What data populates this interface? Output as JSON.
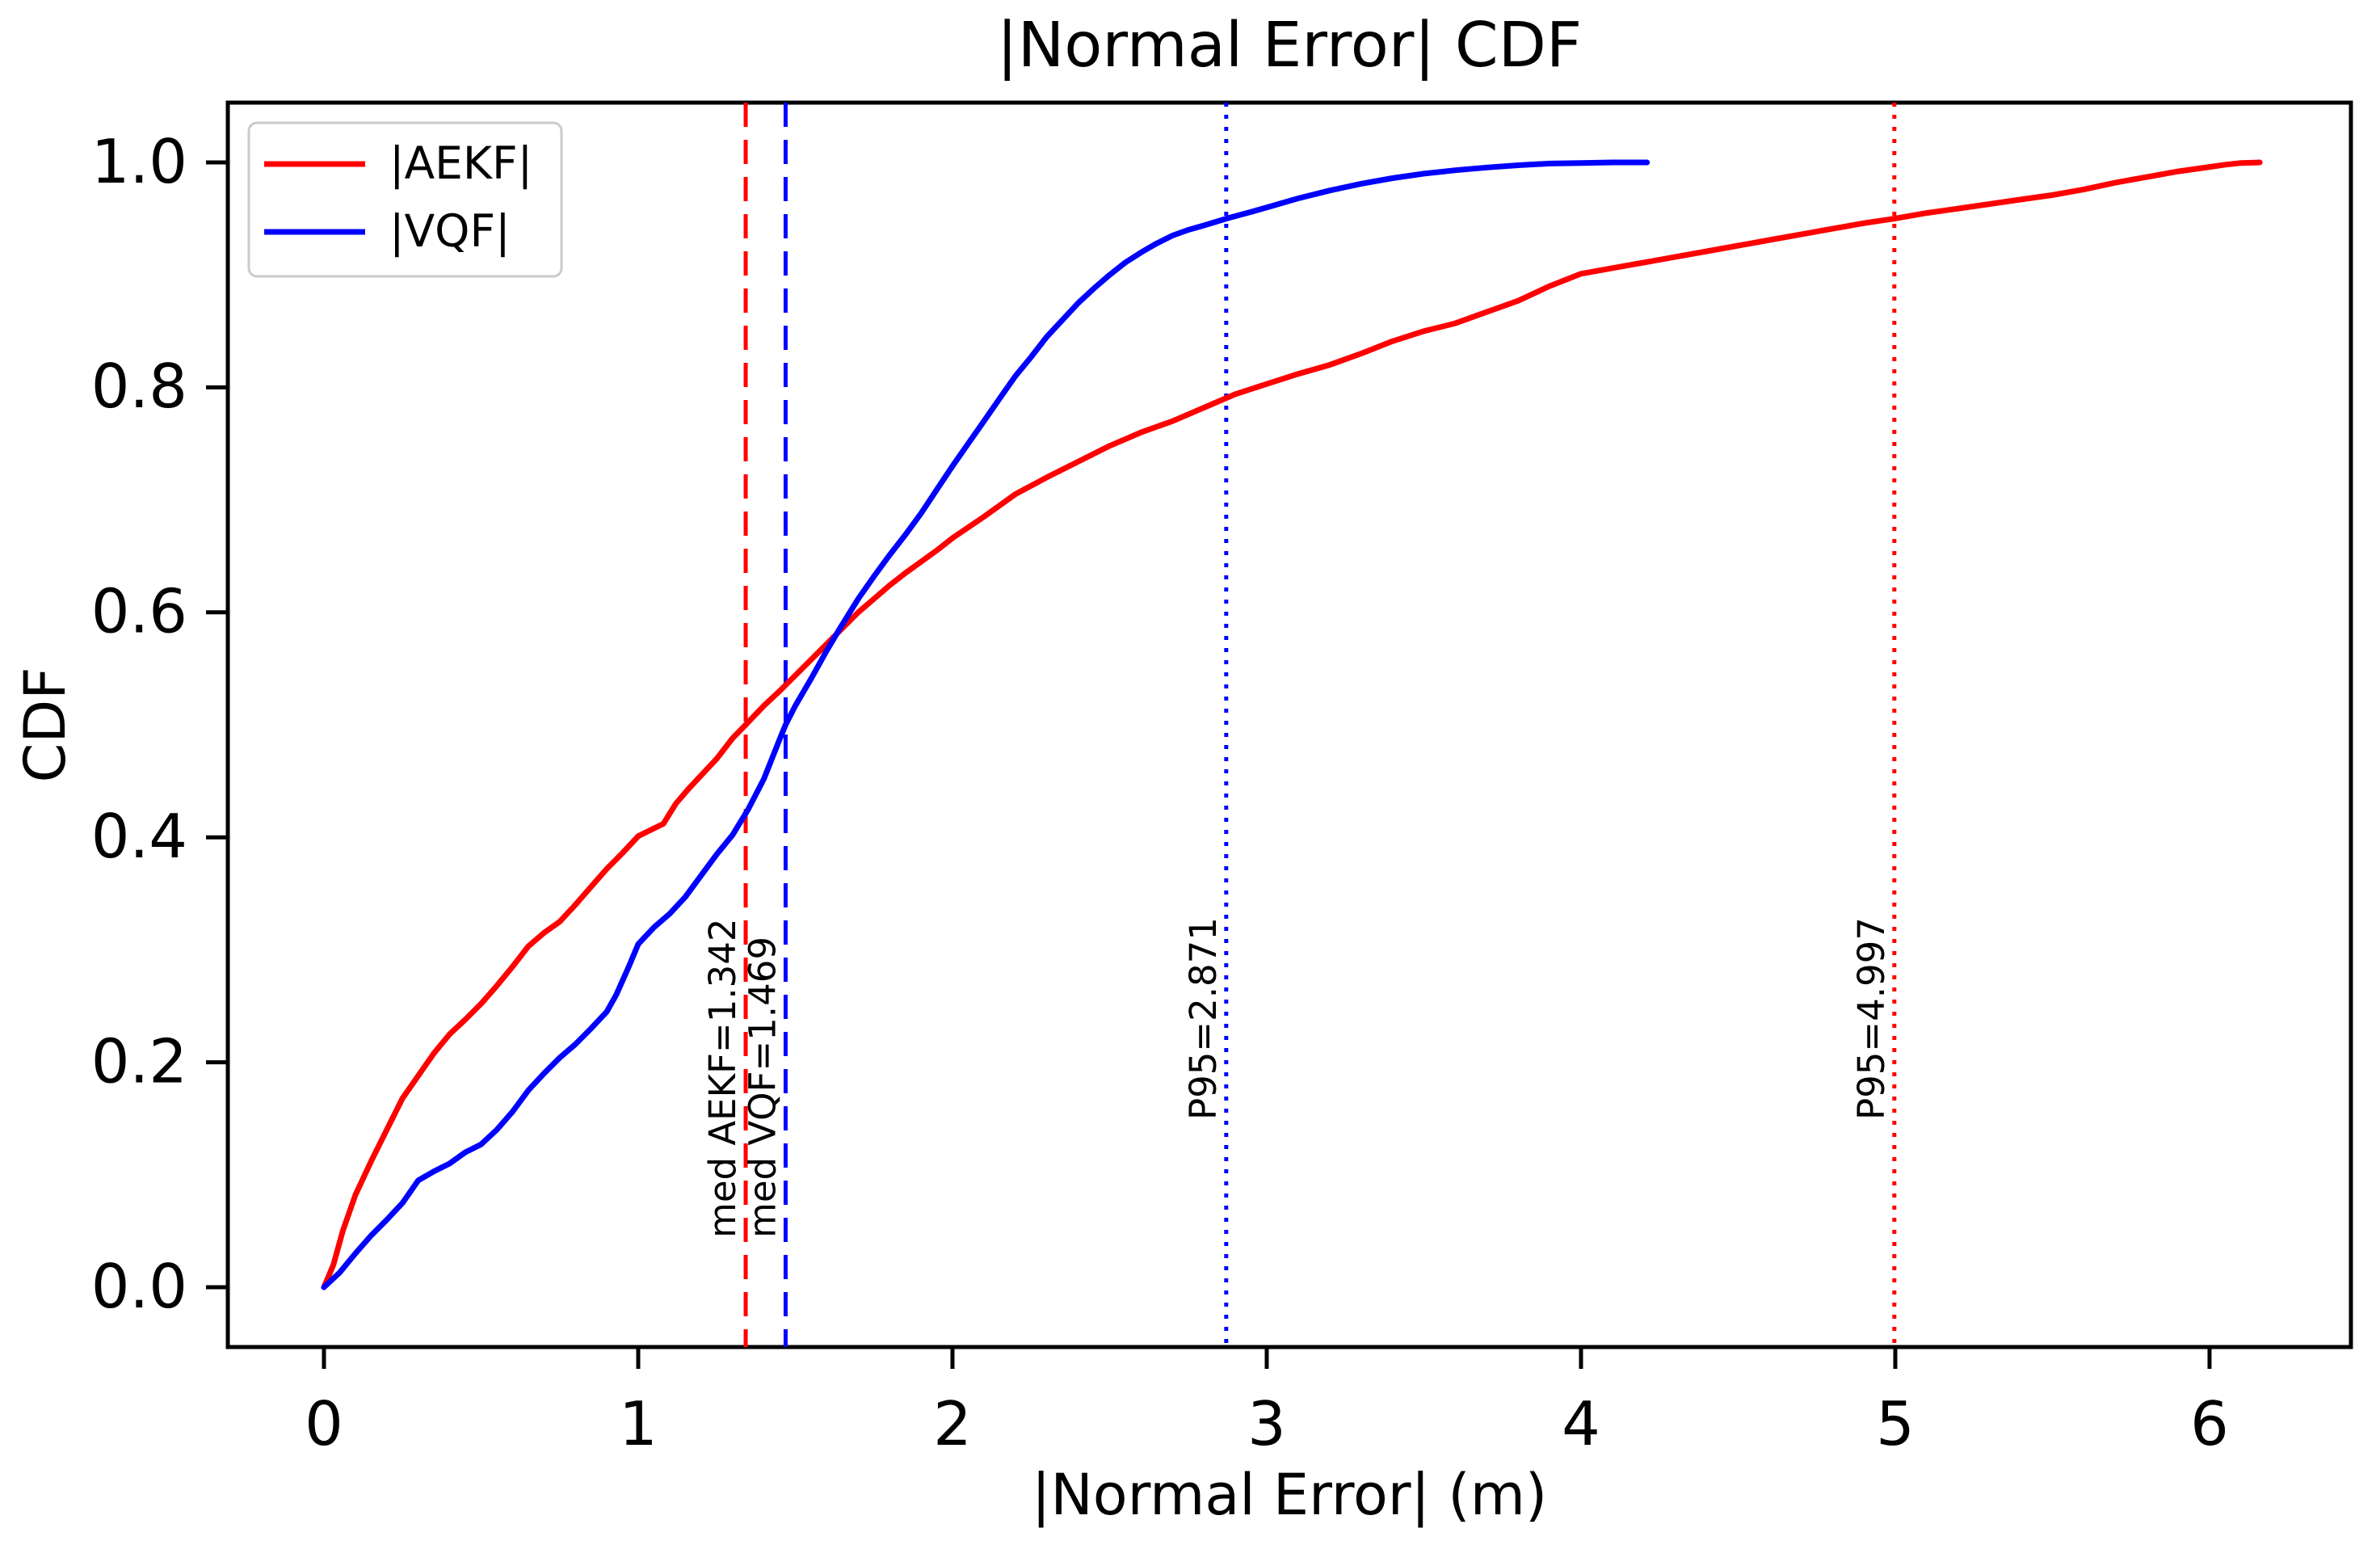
{
  "figure": {
    "background": "#ffffff"
  },
  "chart_data": {
    "type": "line",
    "title": "|Normal Error| CDF",
    "xlabel": "|Normal Error| (m)",
    "ylabel": "CDF",
    "x_ticks": [
      "0",
      "1",
      "2",
      "3",
      "4",
      "5",
      "6"
    ],
    "x_tick_values": [
      0,
      1,
      2,
      3,
      4,
      5,
      6
    ],
    "y_ticks": [
      "0.0",
      "0.2",
      "0.4",
      "0.6",
      "0.8",
      "1.0"
    ],
    "y_tick_values": [
      0.0,
      0.2,
      0.4,
      0.6,
      0.8,
      1.0
    ],
    "xlim": [
      -0.31,
      6.45
    ],
    "ylim": [
      -0.053,
      1.053
    ],
    "grid": false,
    "legend_position": "upper left",
    "series": [
      {
        "name": "|AEKF|",
        "color": "#ff0000",
        "median": 1.342,
        "p95": 4.997,
        "points": [
          [
            0,
            0
          ],
          [
            0.03,
            0.02
          ],
          [
            0.06,
            0.05
          ],
          [
            0.1,
            0.082
          ],
          [
            0.15,
            0.112
          ],
          [
            0.2,
            0.14
          ],
          [
            0.25,
            0.168
          ],
          [
            0.3,
            0.188
          ],
          [
            0.35,
            0.208
          ],
          [
            0.4,
            0.225
          ],
          [
            0.45,
            0.238
          ],
          [
            0.5,
            0.252
          ],
          [
            0.55,
            0.268
          ],
          [
            0.6,
            0.285
          ],
          [
            0.65,
            0.303
          ],
          [
            0.7,
            0.315
          ],
          [
            0.75,
            0.325
          ],
          [
            0.8,
            0.34
          ],
          [
            0.85,
            0.356
          ],
          [
            0.9,
            0.372
          ],
          [
            0.95,
            0.386
          ],
          [
            1.0,
            0.401
          ],
          [
            1.05,
            0.408
          ],
          [
            1.08,
            0.412
          ],
          [
            1.12,
            0.43
          ],
          [
            1.16,
            0.443
          ],
          [
            1.2,
            0.455
          ],
          [
            1.25,
            0.47
          ],
          [
            1.3,
            0.488
          ],
          [
            1.342,
            0.5
          ],
          [
            1.4,
            0.517
          ],
          [
            1.45,
            0.53
          ],
          [
            1.5,
            0.544
          ],
          [
            1.55,
            0.558
          ],
          [
            1.6,
            0.572
          ],
          [
            1.65,
            0.586
          ],
          [
            1.7,
            0.6
          ],
          [
            1.75,
            0.612
          ],
          [
            1.8,
            0.624
          ],
          [
            1.85,
            0.635
          ],
          [
            1.9,
            0.645
          ],
          [
            1.95,
            0.655
          ],
          [
            2.0,
            0.666
          ],
          [
            2.1,
            0.685
          ],
          [
            2.2,
            0.705
          ],
          [
            2.3,
            0.72
          ],
          [
            2.4,
            0.734
          ],
          [
            2.5,
            0.748
          ],
          [
            2.6,
            0.76
          ],
          [
            2.7,
            0.77
          ],
          [
            2.8,
            0.782
          ],
          [
            2.9,
            0.794
          ],
          [
            3.0,
            0.803
          ],
          [
            3.1,
            0.812
          ],
          [
            3.2,
            0.82
          ],
          [
            3.3,
            0.83
          ],
          [
            3.4,
            0.841
          ],
          [
            3.5,
            0.85
          ],
          [
            3.6,
            0.857
          ],
          [
            3.7,
            0.867
          ],
          [
            3.8,
            0.877
          ],
          [
            3.9,
            0.89
          ],
          [
            4.0,
            0.901
          ],
          [
            4.1,
            0.906
          ],
          [
            4.2,
            0.911
          ],
          [
            4.3,
            0.916
          ],
          [
            4.4,
            0.921
          ],
          [
            4.5,
            0.926
          ],
          [
            4.6,
            0.931
          ],
          [
            4.7,
            0.936
          ],
          [
            4.8,
            0.941
          ],
          [
            4.9,
            0.946
          ],
          [
            4.997,
            0.95
          ],
          [
            5.1,
            0.955
          ],
          [
            5.2,
            0.959
          ],
          [
            5.3,
            0.963
          ],
          [
            5.4,
            0.967
          ],
          [
            5.5,
            0.971
          ],
          [
            5.6,
            0.976
          ],
          [
            5.7,
            0.982
          ],
          [
            5.8,
            0.987
          ],
          [
            5.9,
            0.992
          ],
          [
            6.0,
            0.996
          ],
          [
            6.05,
            0.998
          ],
          [
            6.1,
            0.9995
          ],
          [
            6.16,
            1.0
          ]
        ]
      },
      {
        "name": "|VQF|",
        "color": "#0000ff",
        "median": 1.469,
        "p95": 2.871,
        "points": [
          [
            0,
            0
          ],
          [
            0.05,
            0.013
          ],
          [
            0.1,
            0.03
          ],
          [
            0.15,
            0.046
          ],
          [
            0.2,
            0.06
          ],
          [
            0.25,
            0.075
          ],
          [
            0.3,
            0.095
          ],
          [
            0.35,
            0.103
          ],
          [
            0.4,
            0.11
          ],
          [
            0.45,
            0.12
          ],
          [
            0.5,
            0.127
          ],
          [
            0.55,
            0.14
          ],
          [
            0.6,
            0.156
          ],
          [
            0.65,
            0.175
          ],
          [
            0.7,
            0.19
          ],
          [
            0.75,
            0.204
          ],
          [
            0.8,
            0.216
          ],
          [
            0.85,
            0.23
          ],
          [
            0.9,
            0.245
          ],
          [
            0.93,
            0.26
          ],
          [
            0.97,
            0.285
          ],
          [
            1.0,
            0.305
          ],
          [
            1.05,
            0.32
          ],
          [
            1.1,
            0.332
          ],
          [
            1.15,
            0.347
          ],
          [
            1.2,
            0.366
          ],
          [
            1.25,
            0.385
          ],
          [
            1.3,
            0.402
          ],
          [
            1.35,
            0.425
          ],
          [
            1.4,
            0.452
          ],
          [
            1.45,
            0.487
          ],
          [
            1.469,
            0.5
          ],
          [
            1.5,
            0.517
          ],
          [
            1.55,
            0.541
          ],
          [
            1.6,
            0.566
          ],
          [
            1.64,
            0.585
          ],
          [
            1.7,
            0.612
          ],
          [
            1.75,
            0.632
          ],
          [
            1.8,
            0.651
          ],
          [
            1.85,
            0.669
          ],
          [
            1.9,
            0.688
          ],
          [
            1.95,
            0.709
          ],
          [
            2.0,
            0.73
          ],
          [
            2.05,
            0.75
          ],
          [
            2.1,
            0.77
          ],
          [
            2.15,
            0.79
          ],
          [
            2.2,
            0.81
          ],
          [
            2.25,
            0.827
          ],
          [
            2.3,
            0.845
          ],
          [
            2.35,
            0.86
          ],
          [
            2.4,
            0.875
          ],
          [
            2.45,
            0.888
          ],
          [
            2.5,
            0.9
          ],
          [
            2.55,
            0.911
          ],
          [
            2.6,
            0.92
          ],
          [
            2.65,
            0.928
          ],
          [
            2.7,
            0.935
          ],
          [
            2.75,
            0.94
          ],
          [
            2.8,
            0.944
          ],
          [
            2.871,
            0.95
          ],
          [
            2.95,
            0.956
          ],
          [
            3.0,
            0.96
          ],
          [
            3.1,
            0.968
          ],
          [
            3.2,
            0.975
          ],
          [
            3.3,
            0.981
          ],
          [
            3.4,
            0.986
          ],
          [
            3.5,
            0.99
          ],
          [
            3.6,
            0.993
          ],
          [
            3.7,
            0.9955
          ],
          [
            3.8,
            0.9975
          ],
          [
            3.9,
            0.999
          ],
          [
            4.0,
            0.9995
          ],
          [
            4.1,
            1.0
          ],
          [
            4.21,
            1.0
          ]
        ]
      }
    ],
    "vlines": [
      {
        "label": "med AEKF=1.342",
        "x": 1.342,
        "color": "#ff0000",
        "style": "dashed",
        "kind": "median"
      },
      {
        "label": "med VQF=1.469",
        "x": 1.469,
        "color": "#0000ff",
        "style": "dashed",
        "kind": "median"
      },
      {
        "label": "P95=2.871",
        "x": 2.871,
        "color": "#0000ff",
        "style": "dotted",
        "kind": "p95"
      },
      {
        "label": "P95=4.997",
        "x": 4.997,
        "color": "#ff0000",
        "style": "dotted",
        "kind": "p95"
      }
    ]
  }
}
